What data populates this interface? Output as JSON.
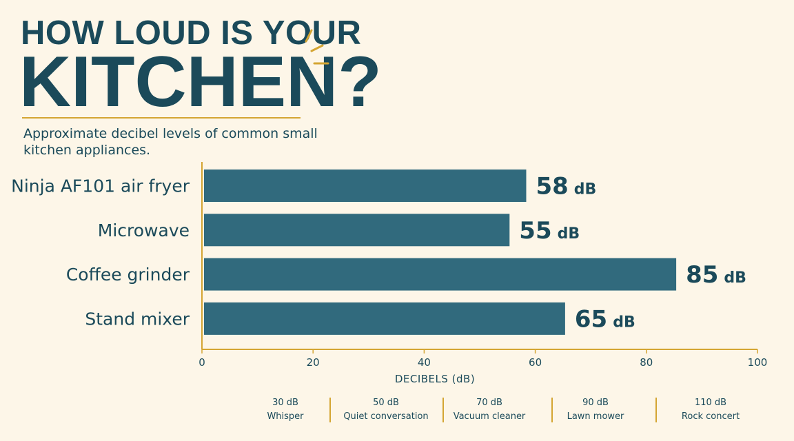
{
  "header": {
    "title_line1": "HOW LOUD IS YOUR",
    "title_line2": "KITCHEN?",
    "subtitle": "Approximate decibel levels of common small kitchen appliances."
  },
  "colors": {
    "background": "#fdf6e8",
    "bar": "#316a7d",
    "text": "#1b4a5a",
    "accent": "#d4a532"
  },
  "chart_data": {
    "type": "bar",
    "orientation": "horizontal",
    "categories": [
      "Ninja AF101 air fryer",
      "Microwave",
      "Coffee grinder",
      "Stand mixer"
    ],
    "values": [
      58,
      55,
      85,
      65
    ],
    "value_unit": "dB",
    "xlabel": "DECIBELS (dB)",
    "xlim": [
      0,
      100
    ],
    "xticks": [
      0,
      20,
      40,
      60,
      80,
      100
    ],
    "grid": false
  },
  "reference_scale": [
    {
      "level": "30 dB",
      "label": "Whisper"
    },
    {
      "level": "50 dB",
      "label": "Quiet conversation"
    },
    {
      "level": "70 dB",
      "label": "Vacuum cleaner"
    },
    {
      "level": "90 dB",
      "label": "Lawn mower"
    },
    {
      "level": "110 dB",
      "label": "Rock concert"
    }
  ]
}
